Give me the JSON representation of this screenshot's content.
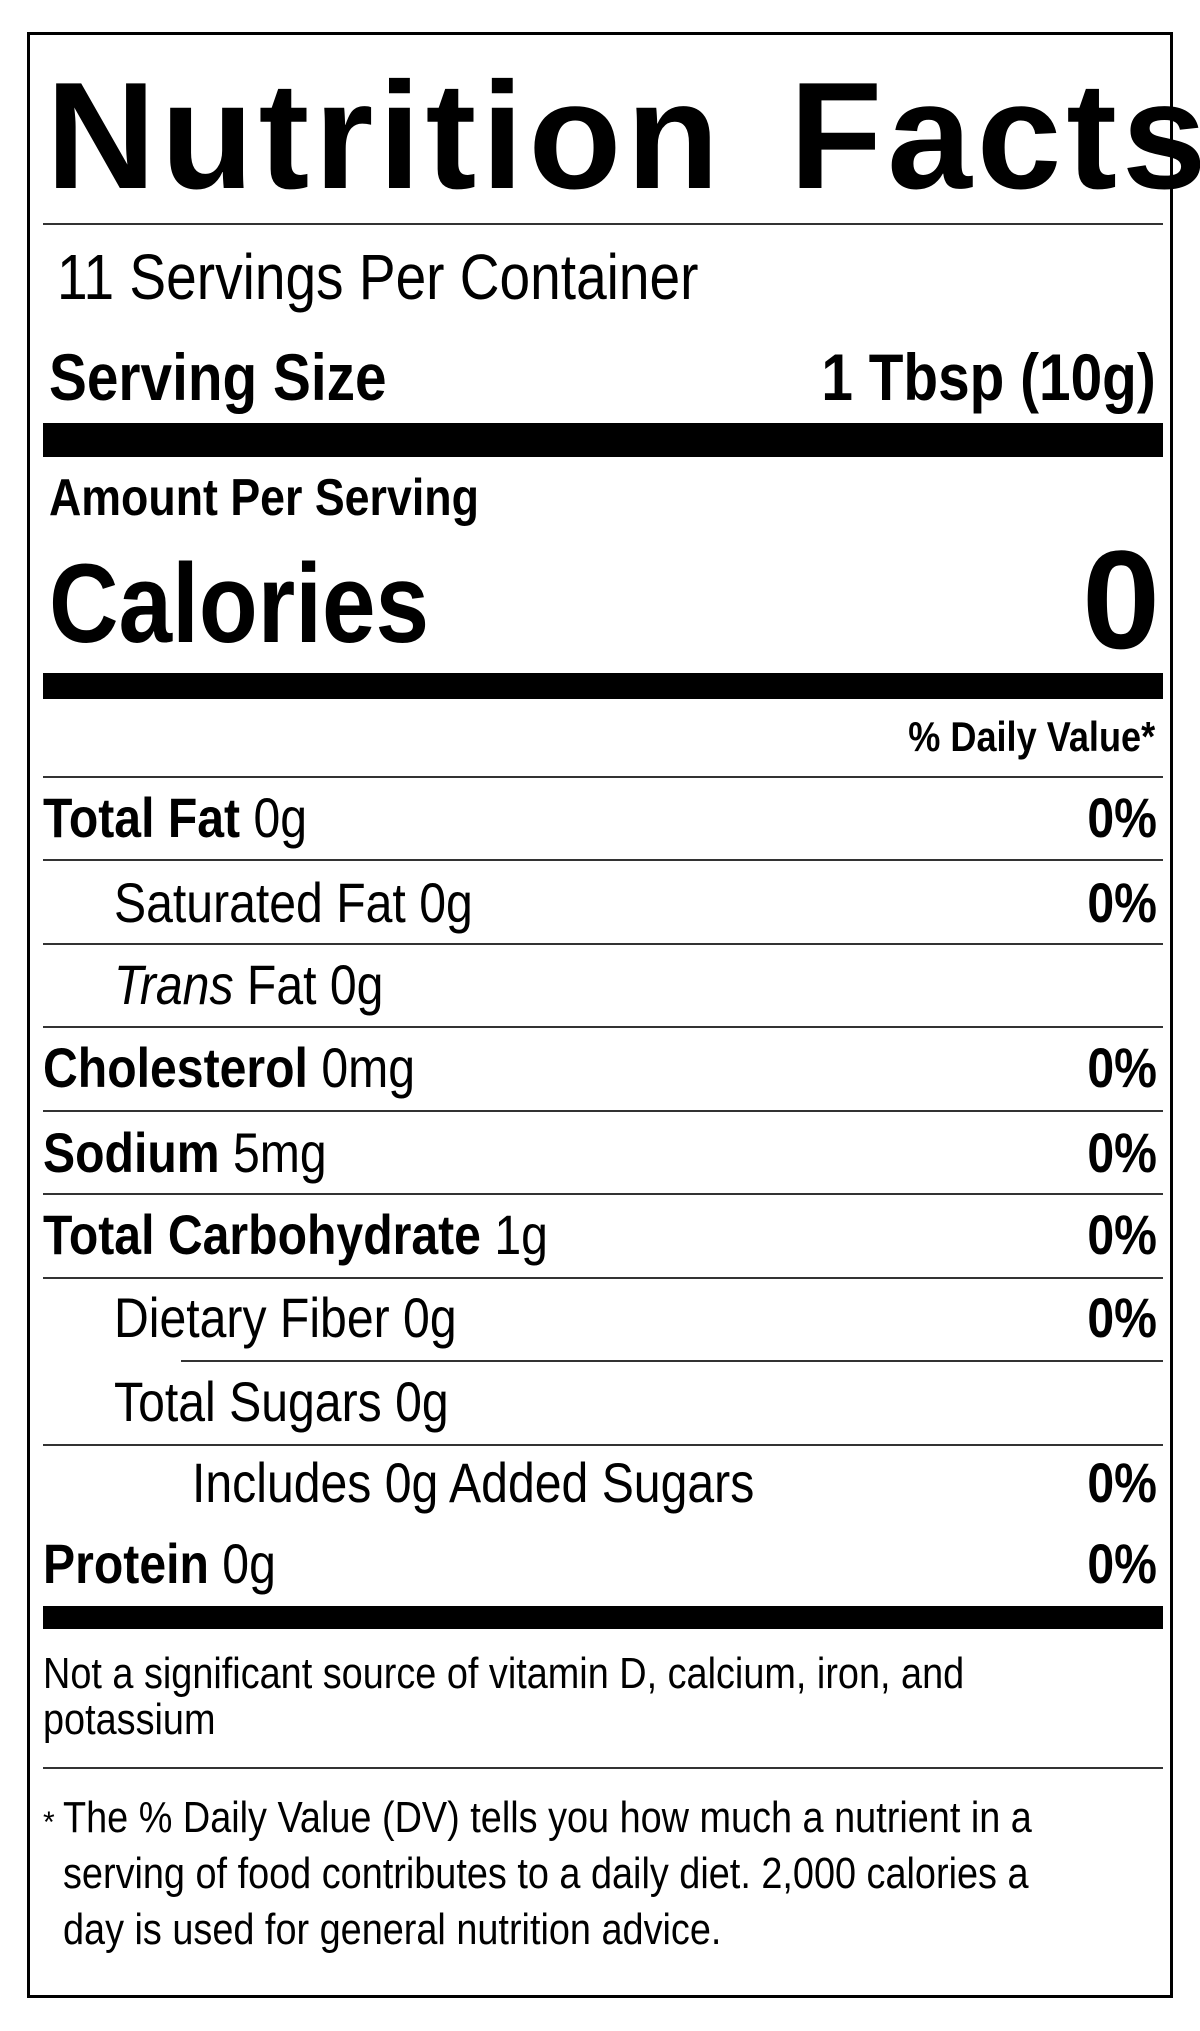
{
  "title": "Nutrition Facts",
  "servings_per_container": "11 Servings Per Container",
  "serving_size": {
    "label": "Serving Size",
    "value": "1 Tbsp (10g)"
  },
  "amount_per_serving": "Amount Per Serving",
  "calories": {
    "label": "Calories",
    "value": "0"
  },
  "daily_value_header": "% Daily Value*",
  "nutrients": [
    {
      "label": "Total Fat",
      "amount": "0g",
      "dv": "0%",
      "bold": true,
      "indent": 0
    },
    {
      "label": "Saturated Fat",
      "amount": "0g",
      "dv": "0%",
      "bold": false,
      "indent": 1
    },
    {
      "label_italic": "Trans",
      "label": "Fat",
      "amount": "0g",
      "dv": "",
      "bold": false,
      "indent": 1
    },
    {
      "label": "Cholesterol",
      "amount": "0mg",
      "dv": "0%",
      "bold": true,
      "indent": 0
    },
    {
      "label": "Sodium",
      "amount": "5mg",
      "dv": "0%",
      "bold": true,
      "indent": 0
    },
    {
      "label": "Total Carbohydrate",
      "amount": "1g",
      "dv": "0%",
      "bold": true,
      "indent": 0
    },
    {
      "label": "Dietary Fiber",
      "amount": "0g",
      "dv": "0%",
      "bold": false,
      "indent": 1
    },
    {
      "label": "Total Sugars",
      "amount": "0g",
      "dv": "",
      "bold": false,
      "indent": 1
    },
    {
      "label": "Includes 0g Added Sugars",
      "amount": "",
      "dv": "0%",
      "bold": false,
      "indent": 2
    },
    {
      "label": "Protein",
      "amount": "0g",
      "dv": "0%",
      "bold": true,
      "indent": 0
    }
  ],
  "micronutrient_note": [
    "Not a significant source of vitamin D, calcium, iron, and",
    "potassium"
  ],
  "footnote": {
    "asterisk": "*",
    "lines": [
      "The % Daily Value (DV) tells you how much a nutrient in a",
      "serving of food contributes to a daily diet. 2,000 calories a",
      "day is used for general nutrition advice."
    ]
  }
}
